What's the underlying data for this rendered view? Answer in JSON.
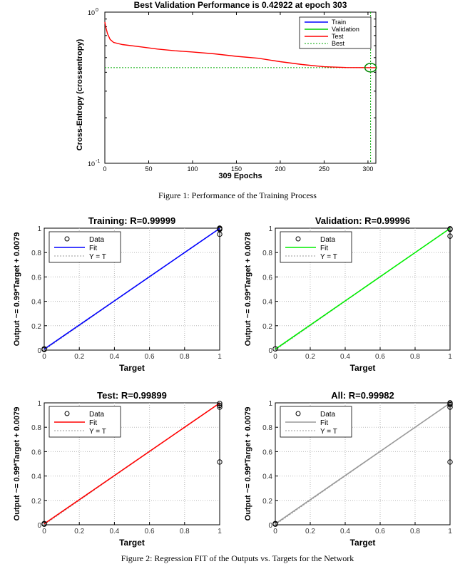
{
  "performance": {
    "chart_data": {
      "type": "line",
      "title": "Best Validation Performance is 0.42922 at epoch 303",
      "xlabel": "309 Epochs",
      "ylabel": "Cross-Entropy  (crossentropy)",
      "xlim": [
        0,
        309
      ],
      "ylim": [
        0.1,
        1
      ],
      "yscale": "log",
      "xticks": [
        "0",
        "50",
        "100",
        "150",
        "200",
        "250",
        "300"
      ],
      "yticks": [
        "10",
        "10"
      ],
      "ytick_exponents": [
        "0",
        "-1"
      ],
      "legend_position": "top-right",
      "best": {
        "epoch": 303,
        "value": 0.42922
      },
      "series": [
        {
          "name": "Train",
          "color": "#0000ff",
          "x": [],
          "y": []
        },
        {
          "name": "Validation",
          "color": "#00cc00",
          "x": [],
          "y": []
        },
        {
          "name": "Test",
          "color": "#ff0000",
          "x": [
            0,
            1,
            3,
            6,
            10,
            20,
            40,
            60,
            80,
            100,
            125,
            150,
            175,
            200,
            225,
            250,
            275,
            303,
            309
          ],
          "y": [
            0.86,
            0.8,
            0.72,
            0.66,
            0.63,
            0.61,
            0.59,
            0.57,
            0.555,
            0.545,
            0.53,
            0.51,
            0.495,
            0.47,
            0.45,
            0.435,
            0.43,
            0.429,
            0.429
          ]
        },
        {
          "name": "Best",
          "color": "#00aa00",
          "x": [],
          "y": []
        }
      ]
    },
    "caption": "Figure 1: Performance of the Training Process"
  },
  "regression": {
    "caption": "Figure 2: Regression FIT of the Outputs vs. Targets for the Network",
    "chart_data": [
      {
        "type": "scatter",
        "title": "Training: R=0.99999",
        "xlabel": "Target",
        "ylabel": "Output ~= 0.99*Target + 0.0079",
        "xlim": [
          0,
          1
        ],
        "ylim": [
          0,
          1
        ],
        "xticks": [
          "0",
          "0.2",
          "0.4",
          "0.6",
          "0.8",
          "1"
        ],
        "yticks": [
          "0",
          "0.2",
          "0.4",
          "0.6",
          "0.8",
          "1"
        ],
        "fit_color": "#0000ff",
        "legend": [
          "Data",
          "Fit",
          "Y = T"
        ],
        "legend_position": "top-left",
        "points": [
          [
            0,
            0.01
          ],
          [
            0,
            0.005
          ],
          [
            1,
            1
          ],
          [
            1,
            0.995
          ],
          [
            1,
            0.99
          ],
          [
            1,
            0.95
          ]
        ]
      },
      {
        "type": "scatter",
        "title": "Validation: R=0.99996",
        "xlabel": "Target",
        "ylabel": "Output ~= 0.99*Target + 0.0078",
        "xlim": [
          0,
          1
        ],
        "ylim": [
          0,
          1
        ],
        "xticks": [
          "0",
          "0.2",
          "0.4",
          "0.6",
          "0.8",
          "1"
        ],
        "yticks": [
          "0",
          "0.2",
          "0.4",
          "0.6",
          "0.8",
          "1"
        ],
        "fit_color": "#00ee00",
        "legend": [
          "Data",
          "Fit",
          "Y = T"
        ],
        "legend_position": "top-left",
        "points": [
          [
            0,
            0.01
          ],
          [
            1,
            0.995
          ],
          [
            1,
            0.99
          ],
          [
            1,
            0.935
          ]
        ]
      },
      {
        "type": "scatter",
        "title": "Test: R=0.99899",
        "xlabel": "Target",
        "ylabel": "Output ~= 0.99*Target + 0.0079",
        "xlim": [
          0,
          1
        ],
        "ylim": [
          0,
          1
        ],
        "xticks": [
          "0",
          "0.2",
          "0.4",
          "0.6",
          "0.8",
          "1"
        ],
        "yticks": [
          "0",
          "0.2",
          "0.4",
          "0.6",
          "0.8",
          "1"
        ],
        "fit_color": "#ff0000",
        "legend": [
          "Data",
          "Fit",
          "Y = T"
        ],
        "legend_position": "top-left",
        "points": [
          [
            0,
            0.01
          ],
          [
            0,
            0.005
          ],
          [
            1,
            0.995
          ],
          [
            1,
            0.98
          ],
          [
            1,
            0.965
          ],
          [
            1,
            0.515
          ]
        ]
      },
      {
        "type": "scatter",
        "title": "All: R=0.99982",
        "xlabel": "Target",
        "ylabel": "Output ~= 0.99*Target + 0.0079",
        "xlim": [
          0,
          1
        ],
        "ylim": [
          0,
          1
        ],
        "xticks": [
          "0",
          "0.2",
          "0.4",
          "0.6",
          "0.8",
          "1"
        ],
        "yticks": [
          "0",
          "0.2",
          "0.4",
          "0.6",
          "0.8",
          "1"
        ],
        "fit_color": "#999999",
        "legend": [
          "Data",
          "Fit",
          "Y = T"
        ],
        "legend_position": "top-left",
        "points": [
          [
            0,
            0.01
          ],
          [
            0,
            0.005
          ],
          [
            1,
            1
          ],
          [
            1,
            0.995
          ],
          [
            1,
            0.985
          ],
          [
            1,
            0.965
          ],
          [
            1,
            0.515
          ]
        ]
      }
    ]
  }
}
